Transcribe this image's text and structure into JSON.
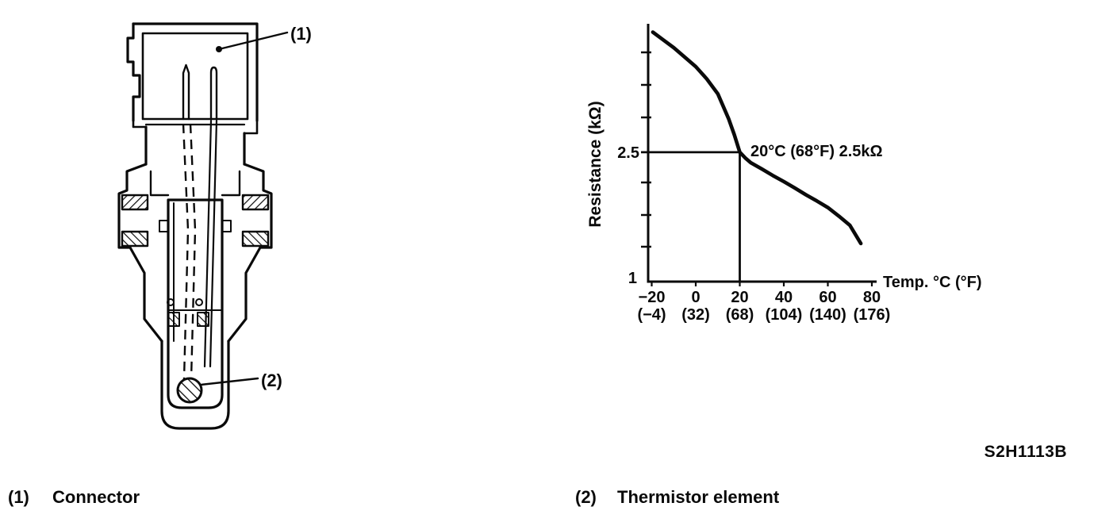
{
  "figure": {
    "code": "S2H1113B",
    "diagram_labels": {
      "label1": "(1)",
      "label2": "(2)"
    },
    "callouts": [
      {
        "num": "(1)",
        "label": "Connector"
      },
      {
        "num": "(2)",
        "label": "Thermistor element"
      }
    ]
  },
  "chart_data": {
    "type": "line",
    "title": "",
    "xlabel": "Temp. °C (°F)",
    "ylabel": "Resistance (kΩ)",
    "x_ticks_c": [
      "−20",
      "0",
      "20",
      "40",
      "60",
      "80"
    ],
    "x_ticks_f": [
      "(−4)",
      "(32)",
      "(68)",
      "(104)",
      "(140)",
      "(176)"
    ],
    "x_tick_values_c": [
      -20,
      0,
      20,
      40,
      60,
      80
    ],
    "y_ticks": [
      "2.5",
      "1"
    ],
    "y_tick_values": [
      2.5,
      1
    ],
    "y_scale": "log",
    "xlim": [
      -22,
      85
    ],
    "ylim": [
      1,
      6.2
    ],
    "grid": false,
    "annotation": "20°C (68°F) 2.5kΩ",
    "marked_point": {
      "temp_c": 20,
      "temp_f": 68,
      "resistance_kohm": 2.5
    },
    "curve_points": [
      [
        -19.5,
        5.85
      ],
      [
        -15,
        5.55
      ],
      [
        -10,
        5.24
      ],
      [
        -5,
        4.9
      ],
      [
        0,
        4.58
      ],
      [
        5,
        4.2
      ],
      [
        10,
        3.78
      ],
      [
        15,
        3.16
      ],
      [
        17.5,
        2.83
      ],
      [
        20,
        2.5
      ],
      [
        22.5,
        2.4
      ],
      [
        25,
        2.32
      ],
      [
        30,
        2.22
      ],
      [
        35,
        2.12
      ],
      [
        40,
        2.03
      ],
      [
        45,
        1.94
      ],
      [
        50,
        1.85
      ],
      [
        55,
        1.77
      ],
      [
        60,
        1.69
      ],
      [
        65,
        1.59
      ],
      [
        70,
        1.49
      ],
      [
        75,
        1.31
      ]
    ]
  }
}
